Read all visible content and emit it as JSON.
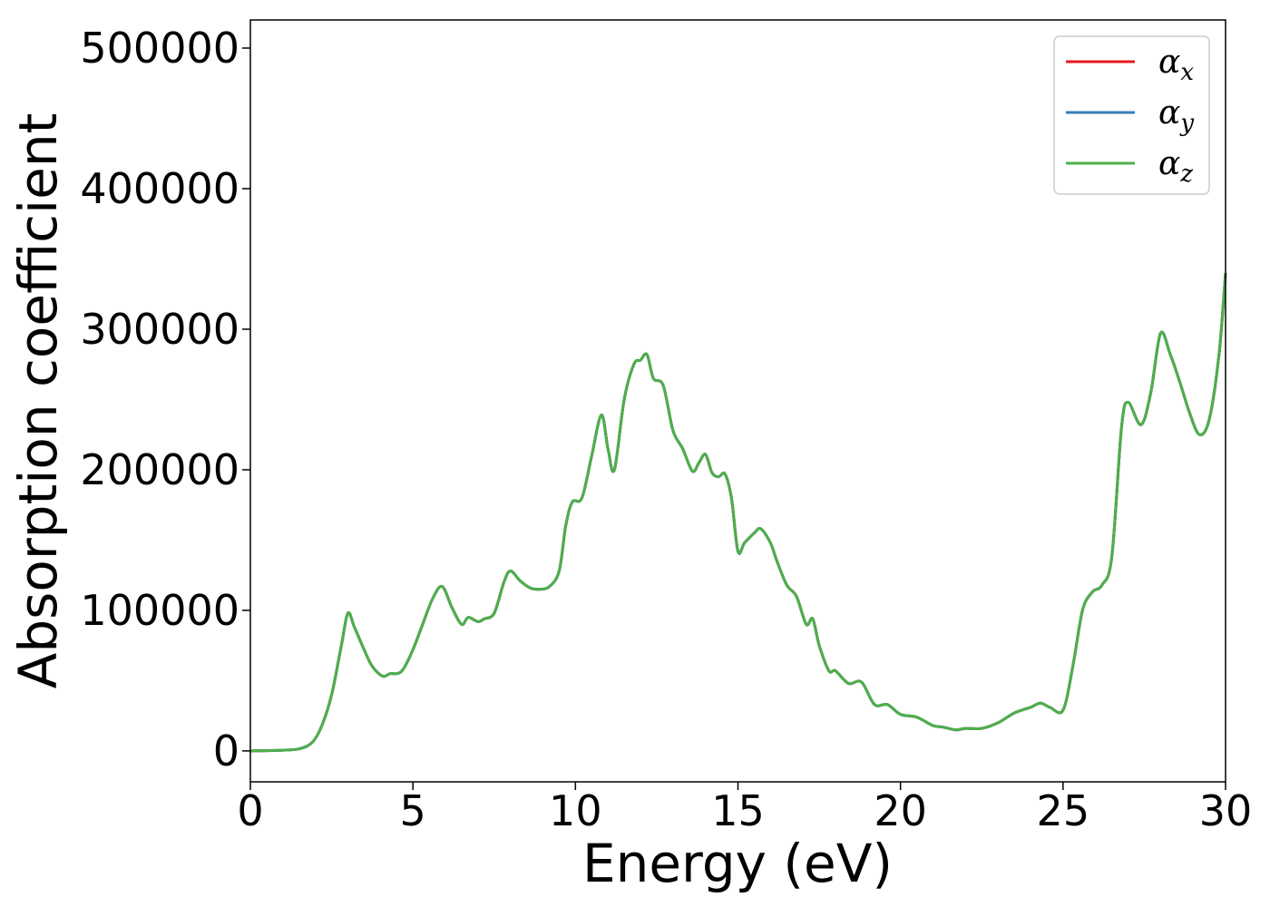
{
  "chart_data": {
    "type": "line",
    "xlabel": "Energy (eV)",
    "ylabel": "Absorption coefficient",
    "xlim": [
      0,
      30
    ],
    "ylim": [
      -22000,
      520000
    ],
    "xticks": [
      0,
      5,
      10,
      15,
      20,
      25,
      30
    ],
    "xtick_labels": [
      "0",
      "5",
      "10",
      "15",
      "20",
      "25",
      "30"
    ],
    "yticks": [
      0,
      100000,
      200000,
      300000,
      400000,
      500000
    ],
    "ytick_labels": [
      "0",
      "100000",
      "200000",
      "300000",
      "400000",
      "500000"
    ],
    "grid": false,
    "legend_position": "top-right",
    "x": [
      0,
      1,
      1.5,
      1.9,
      2.2,
      2.5,
      2.8,
      3.0,
      3.2,
      3.5,
      3.7,
      3.9,
      4.1,
      4.3,
      4.5,
      4.7,
      5.0,
      5.3,
      5.6,
      5.9,
      6.2,
      6.5,
      6.7,
      7.0,
      7.2,
      7.5,
      7.8,
      8.0,
      8.3,
      8.6,
      8.9,
      9.2,
      9.5,
      9.7,
      9.9,
      10.2,
      10.5,
      10.8,
      11.0,
      11.2,
      11.5,
      11.8,
      12.0,
      12.2,
      12.4,
      12.7,
      13.0,
      13.3,
      13.6,
      13.8,
      14.0,
      14.2,
      14.4,
      14.6,
      14.8,
      15.0,
      15.2,
      15.5,
      15.7,
      16.0,
      16.2,
      16.5,
      16.8,
      17.1,
      17.3,
      17.5,
      17.8,
      18.0,
      18.4,
      18.8,
      19.2,
      19.6,
      20.0,
      20.5,
      21.0,
      21.3,
      21.7,
      22.0,
      22.5,
      23.0,
      23.5,
      24.0,
      24.3,
      24.6,
      25.0,
      25.3,
      25.6,
      25.9,
      26.2,
      26.5,
      26.8,
      27.0,
      27.4,
      27.7,
      28.0,
      28.3,
      28.6,
      28.9,
      29.2,
      29.5,
      29.8,
      30.0
    ],
    "series": [
      {
        "name": "αx",
        "color": "#e41a1c",
        "values": [
          0,
          500,
          1500,
          6000,
          18000,
          40000,
          75000,
          98000,
          88000,
          72000,
          62000,
          56000,
          53000,
          55000,
          55000,
          58000,
          72000,
          90000,
          108000,
          117000,
          102000,
          90000,
          95000,
          92000,
          94000,
          98000,
          120000,
          128000,
          121000,
          116000,
          115000,
          117000,
          128000,
          160000,
          177000,
          180000,
          210000,
          239000,
          215000,
          200000,
          250000,
          275000,
          278000,
          282000,
          265000,
          260000,
          228000,
          215000,
          199000,
          205000,
          211000,
          198000,
          195000,
          197000,
          180000,
          142000,
          148000,
          155000,
          158000,
          148000,
          135000,
          118000,
          110000,
          90000,
          94000,
          75000,
          57000,
          57000,
          48000,
          49000,
          33000,
          33000,
          26000,
          24000,
          18000,
          17000,
          15000,
          16000,
          16000,
          20000,
          27000,
          31000,
          34000,
          31000,
          29000,
          60000,
          100000,
          113000,
          118000,
          138000,
          230000,
          248000,
          232000,
          255000,
          297000,
          282000,
          262000,
          240000,
          225000,
          236000,
          282000,
          340000
        ]
      },
      {
        "name": "αy",
        "color": "#377eb8",
        "values": [
          0,
          500,
          1500,
          6000,
          18000,
          40000,
          75000,
          98000,
          88000,
          72000,
          62000,
          56000,
          53000,
          55000,
          55000,
          58000,
          72000,
          90000,
          108000,
          117000,
          102000,
          90000,
          95000,
          92000,
          94000,
          98000,
          120000,
          128000,
          121000,
          116000,
          115000,
          117000,
          128000,
          160000,
          177000,
          180000,
          210000,
          239000,
          215000,
          200000,
          250000,
          275000,
          278000,
          282000,
          265000,
          260000,
          228000,
          215000,
          199000,
          205000,
          211000,
          198000,
          195000,
          197000,
          180000,
          142000,
          148000,
          155000,
          158000,
          148000,
          135000,
          118000,
          110000,
          90000,
          94000,
          75000,
          57000,
          57000,
          48000,
          49000,
          33000,
          33000,
          26000,
          24000,
          18000,
          17000,
          15000,
          16000,
          16000,
          20000,
          27000,
          31000,
          34000,
          31000,
          29000,
          60000,
          100000,
          113000,
          118000,
          138000,
          230000,
          248000,
          232000,
          255000,
          297000,
          282000,
          262000,
          240000,
          225000,
          236000,
          282000,
          340000
        ]
      },
      {
        "name": "αz",
        "color": "#4daf4a",
        "values": [
          0,
          500,
          1500,
          6000,
          18000,
          40000,
          75000,
          98000,
          88000,
          72000,
          62000,
          56000,
          53000,
          55000,
          55000,
          58000,
          72000,
          90000,
          108000,
          117000,
          102000,
          90000,
          95000,
          92000,
          94000,
          98000,
          120000,
          128000,
          121000,
          116000,
          115000,
          117000,
          128000,
          160000,
          177000,
          180000,
          210000,
          239000,
          215000,
          200000,
          250000,
          275000,
          278000,
          282000,
          265000,
          260000,
          228000,
          215000,
          199000,
          205000,
          211000,
          198000,
          195000,
          197000,
          180000,
          142000,
          148000,
          155000,
          158000,
          148000,
          135000,
          118000,
          110000,
          90000,
          94000,
          75000,
          57000,
          57000,
          48000,
          49000,
          33000,
          33000,
          26000,
          24000,
          18000,
          17000,
          15000,
          16000,
          16000,
          20000,
          27000,
          31000,
          34000,
          31000,
          29000,
          60000,
          100000,
          113000,
          118000,
          138000,
          230000,
          248000,
          232000,
          255000,
          297000,
          282000,
          262000,
          240000,
          225000,
          236000,
          282000,
          340000
        ]
      }
    ],
    "legend": [
      {
        "symbol": "α",
        "sub": "x",
        "color": "#e41a1c"
      },
      {
        "symbol": "α",
        "sub": "y",
        "color": "#377eb8"
      },
      {
        "symbol": "α",
        "sub": "z",
        "color": "#4daf4a"
      }
    ]
  }
}
